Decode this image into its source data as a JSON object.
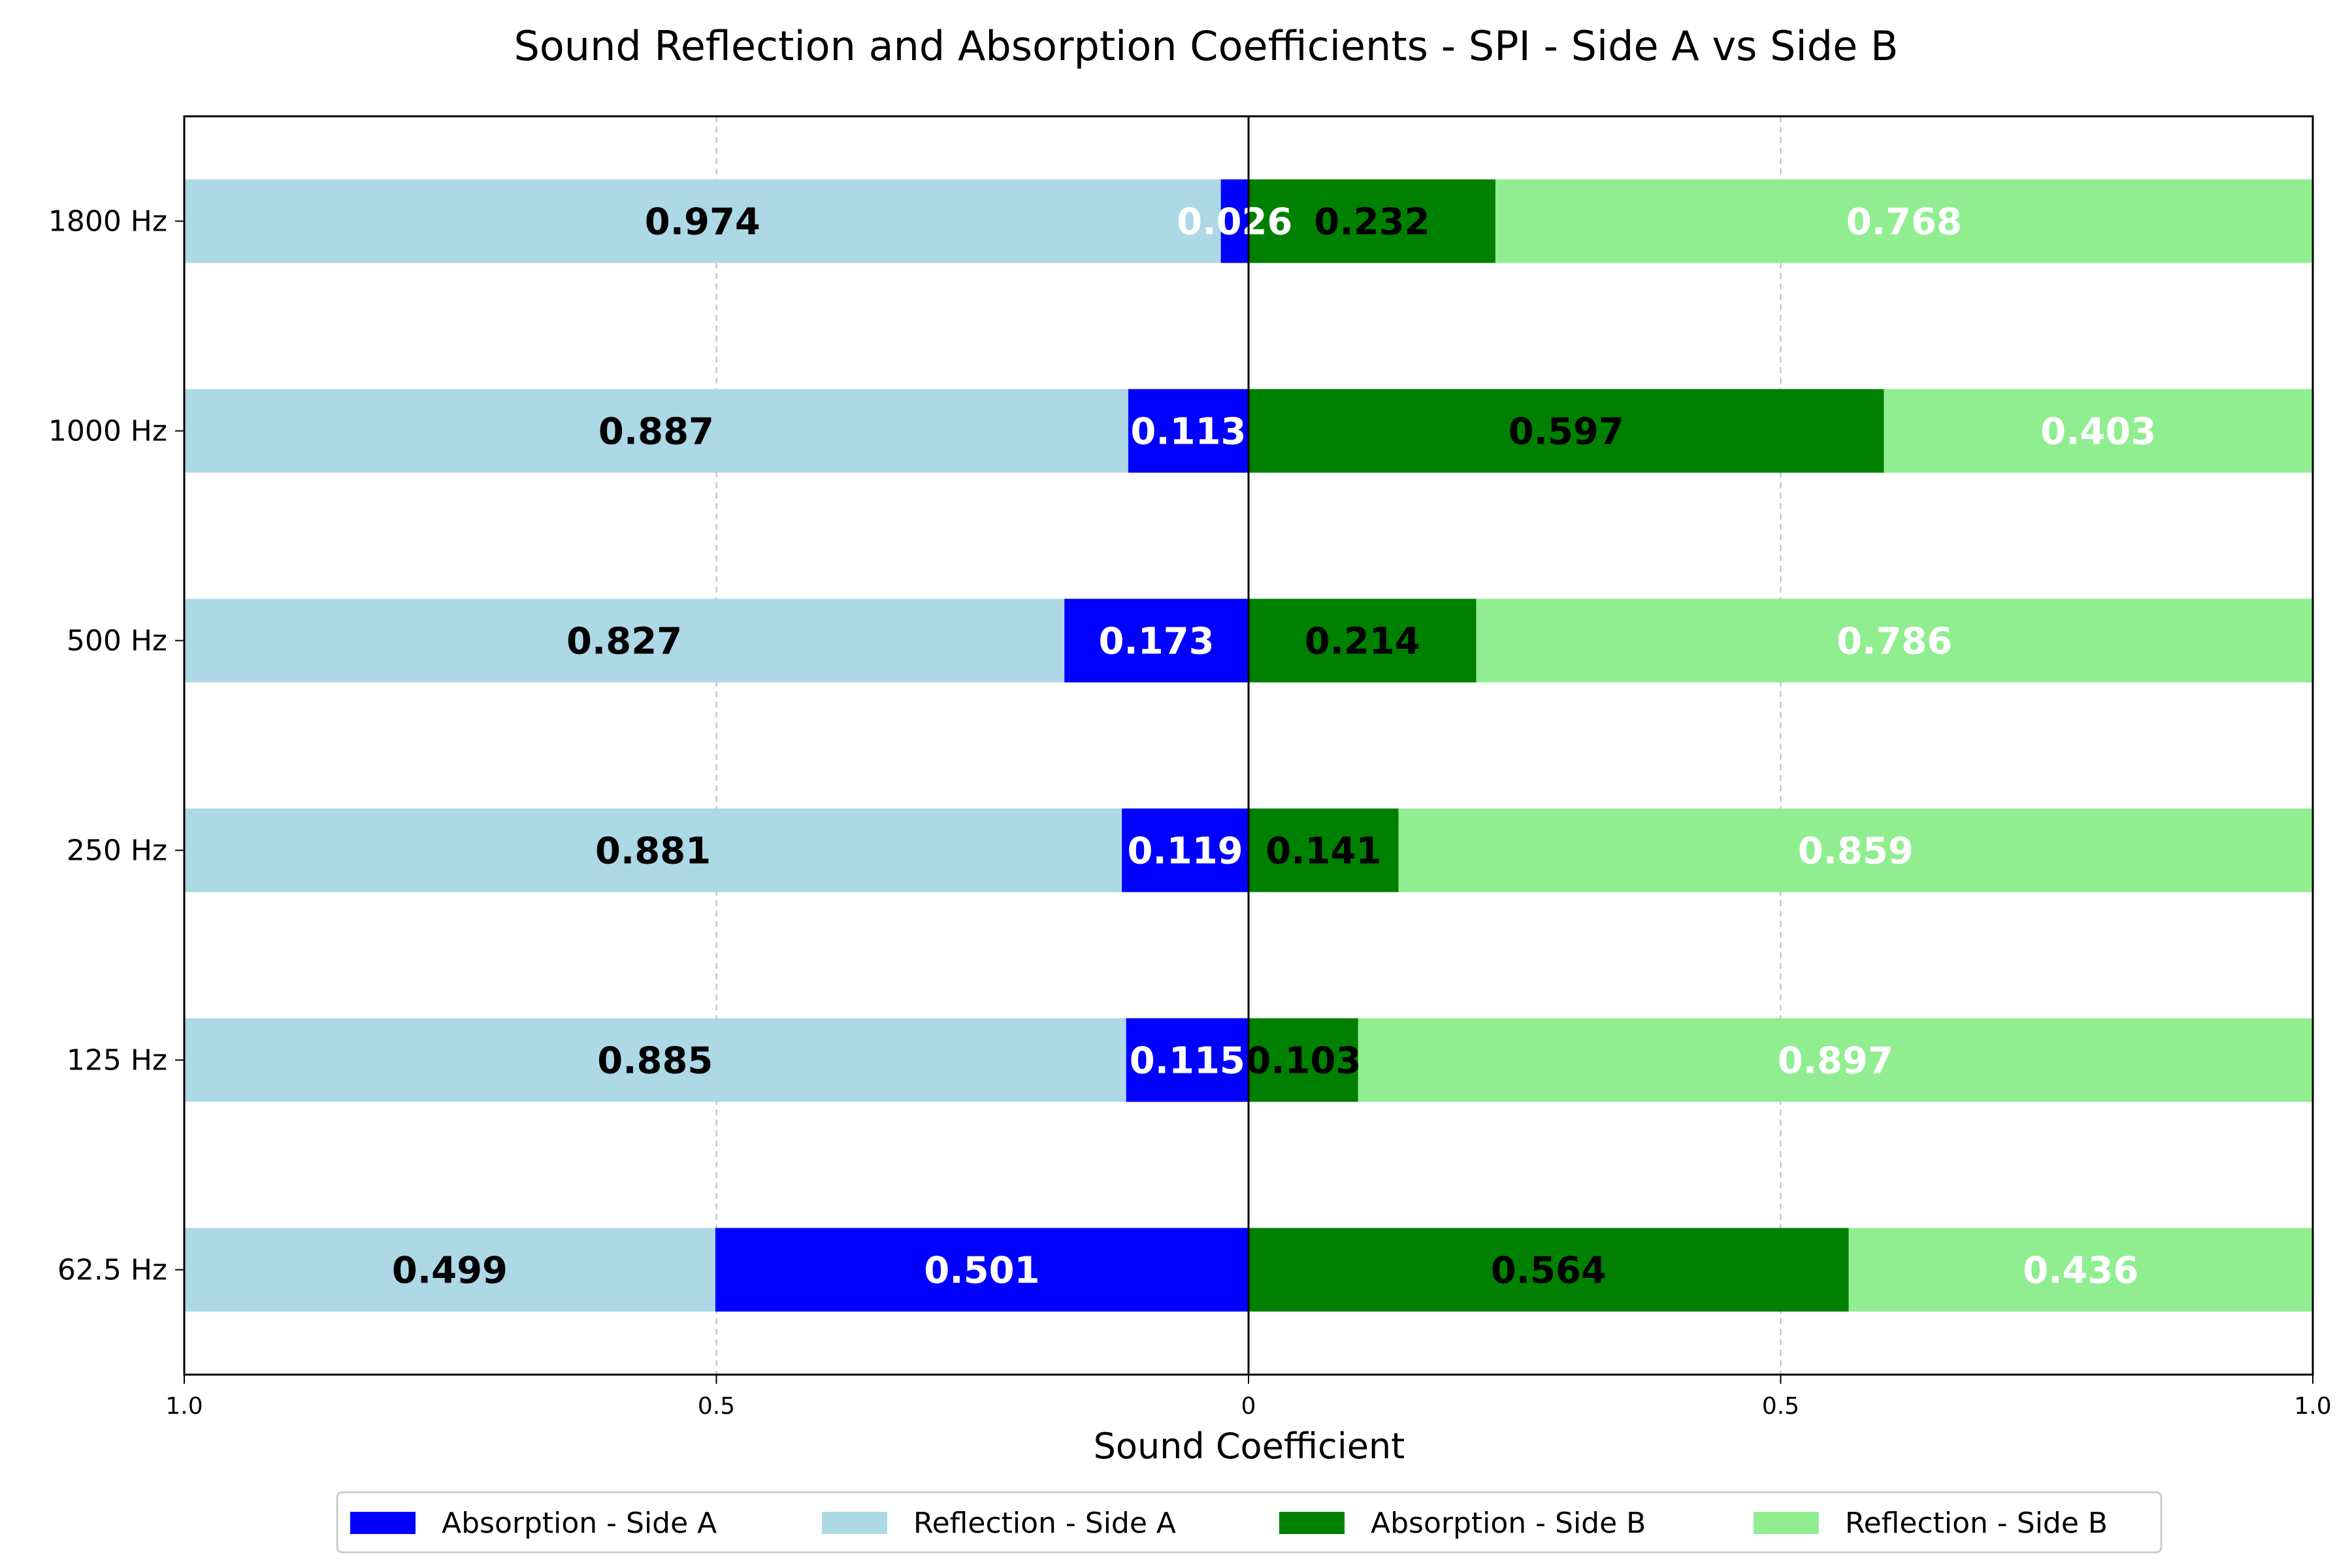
{
  "chart_data": {
    "type": "bar",
    "orientation": "horizontal-diverging-stacked",
    "title": "Sound Reflection and Absorption Coefficients - SPI - Side A vs Side B",
    "xlabel": "Sound Coefficient",
    "ylabel": "",
    "xlim": [
      -1,
      1
    ],
    "x_ticks": [
      {
        "value": -1,
        "label": "1.0"
      },
      {
        "value": -0.5,
        "label": "0.5"
      },
      {
        "value": 0,
        "label": "0"
      },
      {
        "value": 0.5,
        "label": "0.5"
      },
      {
        "value": 1,
        "label": "1.0"
      }
    ],
    "grid": "vertical dashed at ±0.5",
    "legend_placement": "bottom-center",
    "categories": [
      "62.5 Hz",
      "125 Hz",
      "250 Hz",
      "500 Hz",
      "1000 Hz",
      "1800 Hz"
    ],
    "series": [
      {
        "name": "Absorption - Side A",
        "side": "A",
        "kind": "absorption",
        "color": "#0000ff",
        "label_color": "#ffffff",
        "values": [
          0.501,
          0.115,
          0.119,
          0.173,
          0.113,
          0.026
        ],
        "labels": [
          "0.501",
          "0.115",
          "0.119",
          "0.173",
          "0.113",
          "0.026"
        ]
      },
      {
        "name": "Reflection - Side A",
        "side": "A",
        "kind": "reflection",
        "color": "#add8e6",
        "label_color": "#000000",
        "values": [
          0.499,
          0.885,
          0.881,
          0.827,
          0.887,
          0.974
        ],
        "labels": [
          "0.499",
          "0.885",
          "0.881",
          "0.827",
          "0.887",
          "0.974"
        ]
      },
      {
        "name": "Absorption - Side B",
        "side": "B",
        "kind": "absorption",
        "color": "#008000",
        "label_color": "#000000",
        "values": [
          0.564,
          0.103,
          0.141,
          0.214,
          0.597,
          0.232
        ],
        "labels": [
          "0.564",
          "0.103",
          "0.141",
          "0.214",
          "0.597",
          "0.232"
        ]
      },
      {
        "name": "Reflection - Side B",
        "side": "B",
        "kind": "reflection",
        "color": "#90ee90",
        "label_color": "#ffffff",
        "values": [
          0.436,
          0.897,
          0.859,
          0.786,
          0.403,
          0.768
        ],
        "labels": [
          "0.436",
          "0.897",
          "0.859",
          "0.786",
          "0.403",
          "0.768"
        ]
      }
    ]
  }
}
